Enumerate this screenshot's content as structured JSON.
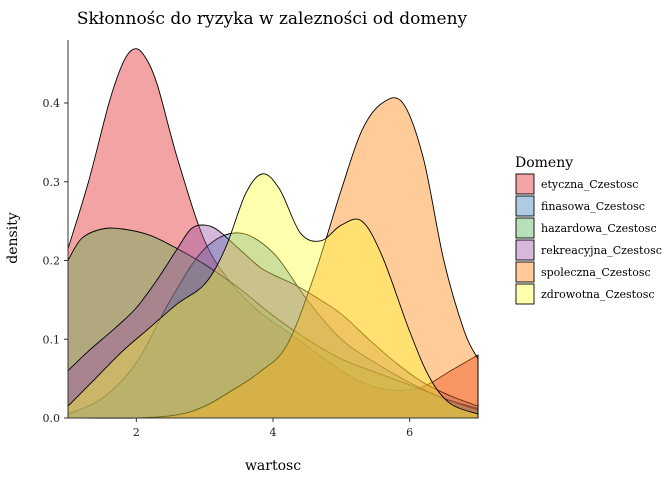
{
  "chart_data": {
    "type": "area",
    "title": "Skłonnośc do ryzyka w zalezności od domeny",
    "xlabel": "wartosc",
    "ylabel": "density",
    "xlim": [
      1.0,
      7.0
    ],
    "ylim": [
      0,
      0.48
    ],
    "xticks": [
      2,
      4,
      6
    ],
    "yticks": [
      0.0,
      0.1,
      0.2,
      0.3,
      0.4
    ],
    "ytick_labels": [
      "0.0",
      "0.1",
      "0.2",
      "0.3",
      "0.4"
    ],
    "grid": false,
    "legend": {
      "title": "Domeny",
      "position": "right"
    },
    "series": [
      {
        "name": "etyczna_Czestosc",
        "color": "#E41A1C",
        "x": [
          1.0,
          1.3,
          1.6,
          1.8,
          1.95,
          2.1,
          2.3,
          2.6,
          3.0,
          3.4,
          3.8,
          4.2,
          4.6,
          5.0,
          5.4,
          5.8,
          6.2,
          6.6,
          7.0
        ],
        "y": [
          0.215,
          0.3,
          0.4,
          0.45,
          0.468,
          0.462,
          0.425,
          0.33,
          0.225,
          0.17,
          0.135,
          0.11,
          0.085,
          0.06,
          0.042,
          0.035,
          0.04,
          0.06,
          0.08
        ]
      },
      {
        "name": "finasowa_Czestosc",
        "color": "#377EB8",
        "x": [
          1.0,
          1.5,
          2.0,
          2.5,
          3.0,
          3.5,
          4.0,
          4.5,
          5.0,
          5.5,
          6.0,
          6.5,
          7.0
        ],
        "y": [
          0.005,
          0.025,
          0.07,
          0.15,
          0.215,
          0.235,
          0.21,
          0.15,
          0.1,
          0.07,
          0.045,
          0.025,
          0.012
        ]
      },
      {
        "name": "hazardowa_Czestosc",
        "color": "#4DAF4A",
        "x": [
          1.0,
          1.2,
          1.5,
          1.8,
          2.2,
          2.6,
          3.0,
          3.5,
          4.0,
          4.5,
          5.0,
          5.5,
          6.0,
          6.5,
          7.0
        ],
        "y": [
          0.2,
          0.228,
          0.24,
          0.24,
          0.232,
          0.215,
          0.195,
          0.165,
          0.13,
          0.1,
          0.075,
          0.058,
          0.042,
          0.025,
          0.01
        ]
      },
      {
        "name": "rekreacyjna_Czestosc",
        "color": "#984EA3",
        "x": [
          1.0,
          1.3,
          1.7,
          2.0,
          2.3,
          2.6,
          2.8,
          3.0,
          3.2,
          3.5,
          3.8,
          4.0,
          4.3,
          4.6,
          5.0,
          5.4,
          5.8,
          6.2,
          6.6,
          7.0
        ],
        "y": [
          0.06,
          0.085,
          0.115,
          0.14,
          0.175,
          0.215,
          0.24,
          0.245,
          0.238,
          0.215,
          0.192,
          0.182,
          0.17,
          0.155,
          0.132,
          0.1,
          0.07,
          0.045,
          0.028,
          0.015
        ]
      },
      {
        "name": "spoleczna_Czestosc",
        "color": "#FF7F00",
        "x": [
          1.0,
          2.0,
          2.6,
          3.0,
          3.4,
          3.8,
          4.2,
          4.6,
          5.0,
          5.3,
          5.6,
          5.9,
          6.2,
          6.5,
          6.8,
          7.0
        ],
        "y": [
          0.0,
          0.0,
          0.004,
          0.015,
          0.035,
          0.058,
          0.092,
          0.18,
          0.29,
          0.365,
          0.4,
          0.4,
          0.33,
          0.2,
          0.11,
          0.075
        ]
      },
      {
        "name": "zdrowotna_Czestosc",
        "color": "#FFFF33",
        "x": [
          1.0,
          1.4,
          1.8,
          2.2,
          2.6,
          3.0,
          3.3,
          3.6,
          3.85,
          4.1,
          4.4,
          4.7,
          5.0,
          5.3,
          5.6,
          6.0,
          6.3,
          6.6,
          7.0
        ],
        "y": [
          0.015,
          0.05,
          0.085,
          0.115,
          0.145,
          0.17,
          0.215,
          0.285,
          0.31,
          0.29,
          0.235,
          0.225,
          0.245,
          0.25,
          0.205,
          0.11,
          0.05,
          0.018,
          0.005
        ]
      }
    ]
  }
}
